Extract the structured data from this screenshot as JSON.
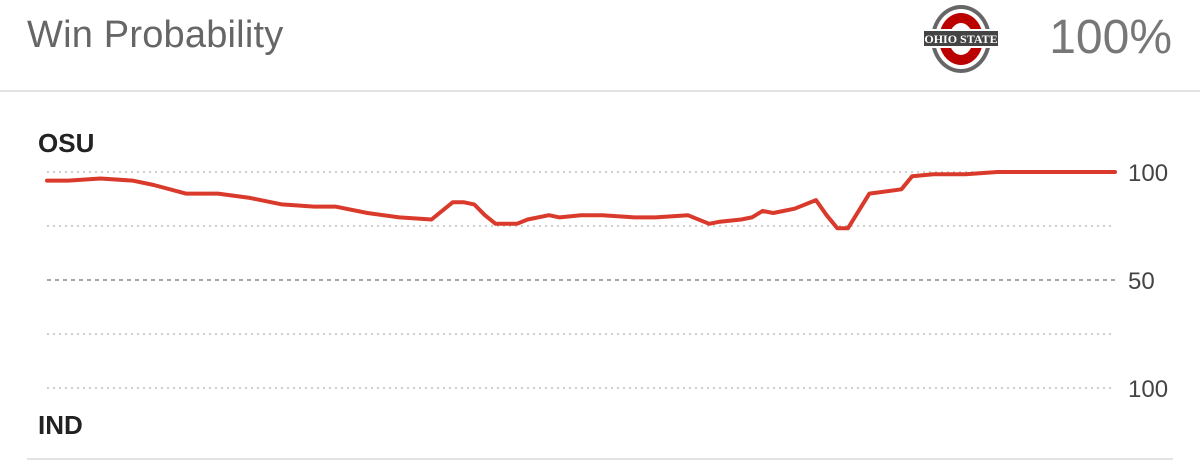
{
  "header": {
    "title": "Win Probability",
    "team_logo_label": "OHIO STATE",
    "win_pct": "100%"
  },
  "teams": {
    "top": "OSU",
    "bottom": "IND"
  },
  "colors": {
    "line": "#d93a2b",
    "logo_red": "#bb0000",
    "logo_gray": "#666666"
  },
  "chart_data": {
    "type": "line",
    "title": "Win Probability",
    "xlabel": "",
    "ylabel": "",
    "x_range": [
      0,
      1
    ],
    "y_range": [
      -100,
      100
    ],
    "yticks": [
      {
        "value": 100,
        "label": "100",
        "solid": false,
        "dash": "dotted"
      },
      {
        "value": 75,
        "label": "",
        "dash": "dotted"
      },
      {
        "value": 50,
        "label": "50",
        "dash": "dashed"
      },
      {
        "value": 25,
        "label": "",
        "dash": "dotted"
      },
      {
        "value": 0,
        "label": "100",
        "dash": "dotted"
      }
    ],
    "series": [
      {
        "name": "",
        "x": [
          0,
          0.02,
          0.05,
          0.08,
          0.1,
          0.13,
          0.16,
          0.19,
          0.22,
          0.25,
          0.27,
          0.3,
          0.33,
          0.36,
          0.38,
          0.39,
          0.4,
          0.41,
          0.42,
          0.44,
          0.45,
          0.47,
          0.48,
          0.5,
          0.52,
          0.55,
          0.57,
          0.6,
          0.62,
          0.63,
          0.65,
          0.66,
          0.67,
          0.68,
          0.69,
          0.7,
          0.72,
          0.73,
          0.74,
          0.75,
          0.77,
          0.8,
          0.81,
          0.83,
          0.86,
          0.89,
          0.92,
          0.96,
          1.0
        ],
        "y": [
          96,
          96,
          97,
          96,
          94,
          90,
          90,
          88,
          85,
          84,
          84,
          81,
          79,
          78,
          86,
          86,
          85,
          80,
          76,
          76,
          78,
          80,
          79,
          80,
          80,
          79,
          79,
          80,
          76,
          77,
          78,
          79,
          82,
          81,
          82,
          83,
          87,
          80,
          74,
          74,
          90,
          92,
          98,
          99,
          99,
          100,
          100,
          100,
          100
        ]
      }
    ],
    "grid": true,
    "legend": "none"
  }
}
